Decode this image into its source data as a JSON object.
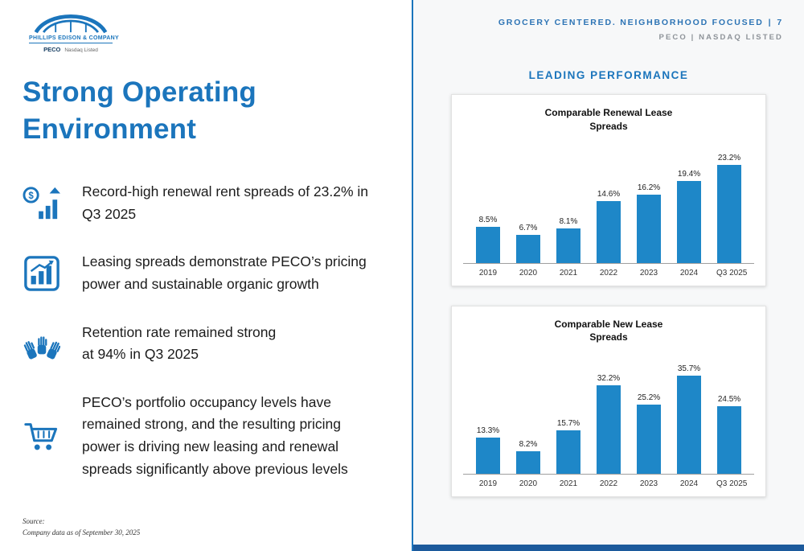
{
  "logo": {
    "company": "PHILLIPS EDISON & COMPANY",
    "ticker": "PECO",
    "listing": "Nasdaq Listed"
  },
  "header": {
    "tagline": "GROCERY CENTERED. NEIGHBORHOOD FOCUSED",
    "separator": "|",
    "page_number": "7",
    "subline": "PECO | NASDAQ LISTED"
  },
  "left": {
    "title_line1": "Strong Operating",
    "title_line2": "Environment",
    "bullets": [
      {
        "icon": "dollar-growth-icon",
        "text": "Record-high renewal rent spreads of 23.2% in Q3 2025"
      },
      {
        "icon": "chart-growth-icon",
        "text": "Leasing spreads demonstrate PECO’s pricing power and sustainable organic growth"
      },
      {
        "icon": "raised-hands-icon",
        "text": "Retention rate remained strong\nat 94% in Q3 2025"
      },
      {
        "icon": "shopping-cart-icon",
        "text": "PECO’s portfolio occupancy levels have remained strong, and the resulting pricing power is driving new leasing and renewal spreads significantly above previous levels"
      }
    ],
    "source_label": "Source:",
    "source_text": "Company data as of September 30, 2025"
  },
  "right": {
    "section_title": "LEADING PERFORMANCE"
  },
  "chart_data": [
    {
      "type": "bar",
      "title": "Comparable Renewal Lease\nSpreads",
      "categories": [
        "2019",
        "2020",
        "2021",
        "2022",
        "2023",
        "2024",
        "Q3 2025"
      ],
      "values": [
        8.5,
        6.7,
        8.1,
        14.6,
        16.2,
        19.4,
        23.2
      ],
      "value_labels": [
        "8.5%",
        "6.7%",
        "8.1%",
        "14.6%",
        "16.2%",
        "19.4%",
        "23.2%"
      ],
      "bar_color": "#1e87c8",
      "xlabel": "",
      "ylabel": "",
      "ylim": [
        0,
        25
      ],
      "grid": false,
      "legend": false
    },
    {
      "type": "bar",
      "title": "Comparable New Lease\nSpreads",
      "categories": [
        "2019",
        "2020",
        "2021",
        "2022",
        "2023",
        "2024",
        "Q3 2025"
      ],
      "values": [
        13.3,
        8.2,
        15.7,
        32.2,
        25.2,
        35.7,
        24.5
      ],
      "value_labels": [
        "13.3%",
        "8.2%",
        "15.7%",
        "32.2%",
        "25.2%",
        "35.7%",
        "24.5%"
      ],
      "bar_color": "#1e87c8",
      "xlabel": "",
      "ylabel": "",
      "ylim": [
        0,
        40
      ],
      "grid": false,
      "legend": false
    }
  ],
  "colors": {
    "primary_blue": "#1b75bc",
    "bar_blue": "#1e87c8",
    "header_gray": "#8e9399",
    "divider_blue": "#1b75bc",
    "bottom_bar_blue": "#1c5a9c"
  }
}
